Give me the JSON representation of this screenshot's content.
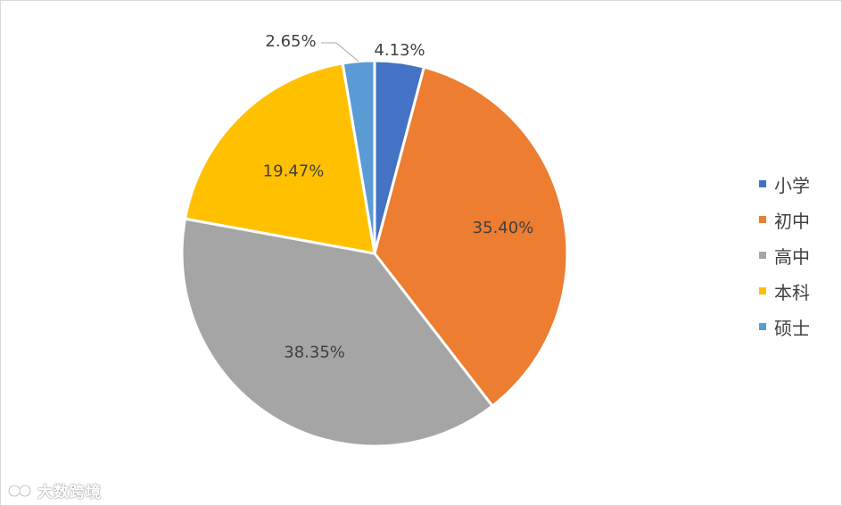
{
  "chart_data": {
    "type": "pie",
    "title": "",
    "categories": [
      "小学",
      "初中",
      "高中",
      "本科",
      "硕士"
    ],
    "values": [
      4.13,
      35.4,
      38.35,
      19.47,
      2.65
    ],
    "value_labels": [
      "4.13%",
      "35.40%",
      "38.35%",
      "19.47%",
      "2.65%"
    ],
    "colors": [
      "#4472C4",
      "#ED7D31",
      "#A5A5A5",
      "#FFC000",
      "#5B9BD5"
    ],
    "start_angle_deg": 0,
    "direction": "clockwise",
    "legend_position": "right"
  },
  "watermark": {
    "text": "大数跨境"
  }
}
